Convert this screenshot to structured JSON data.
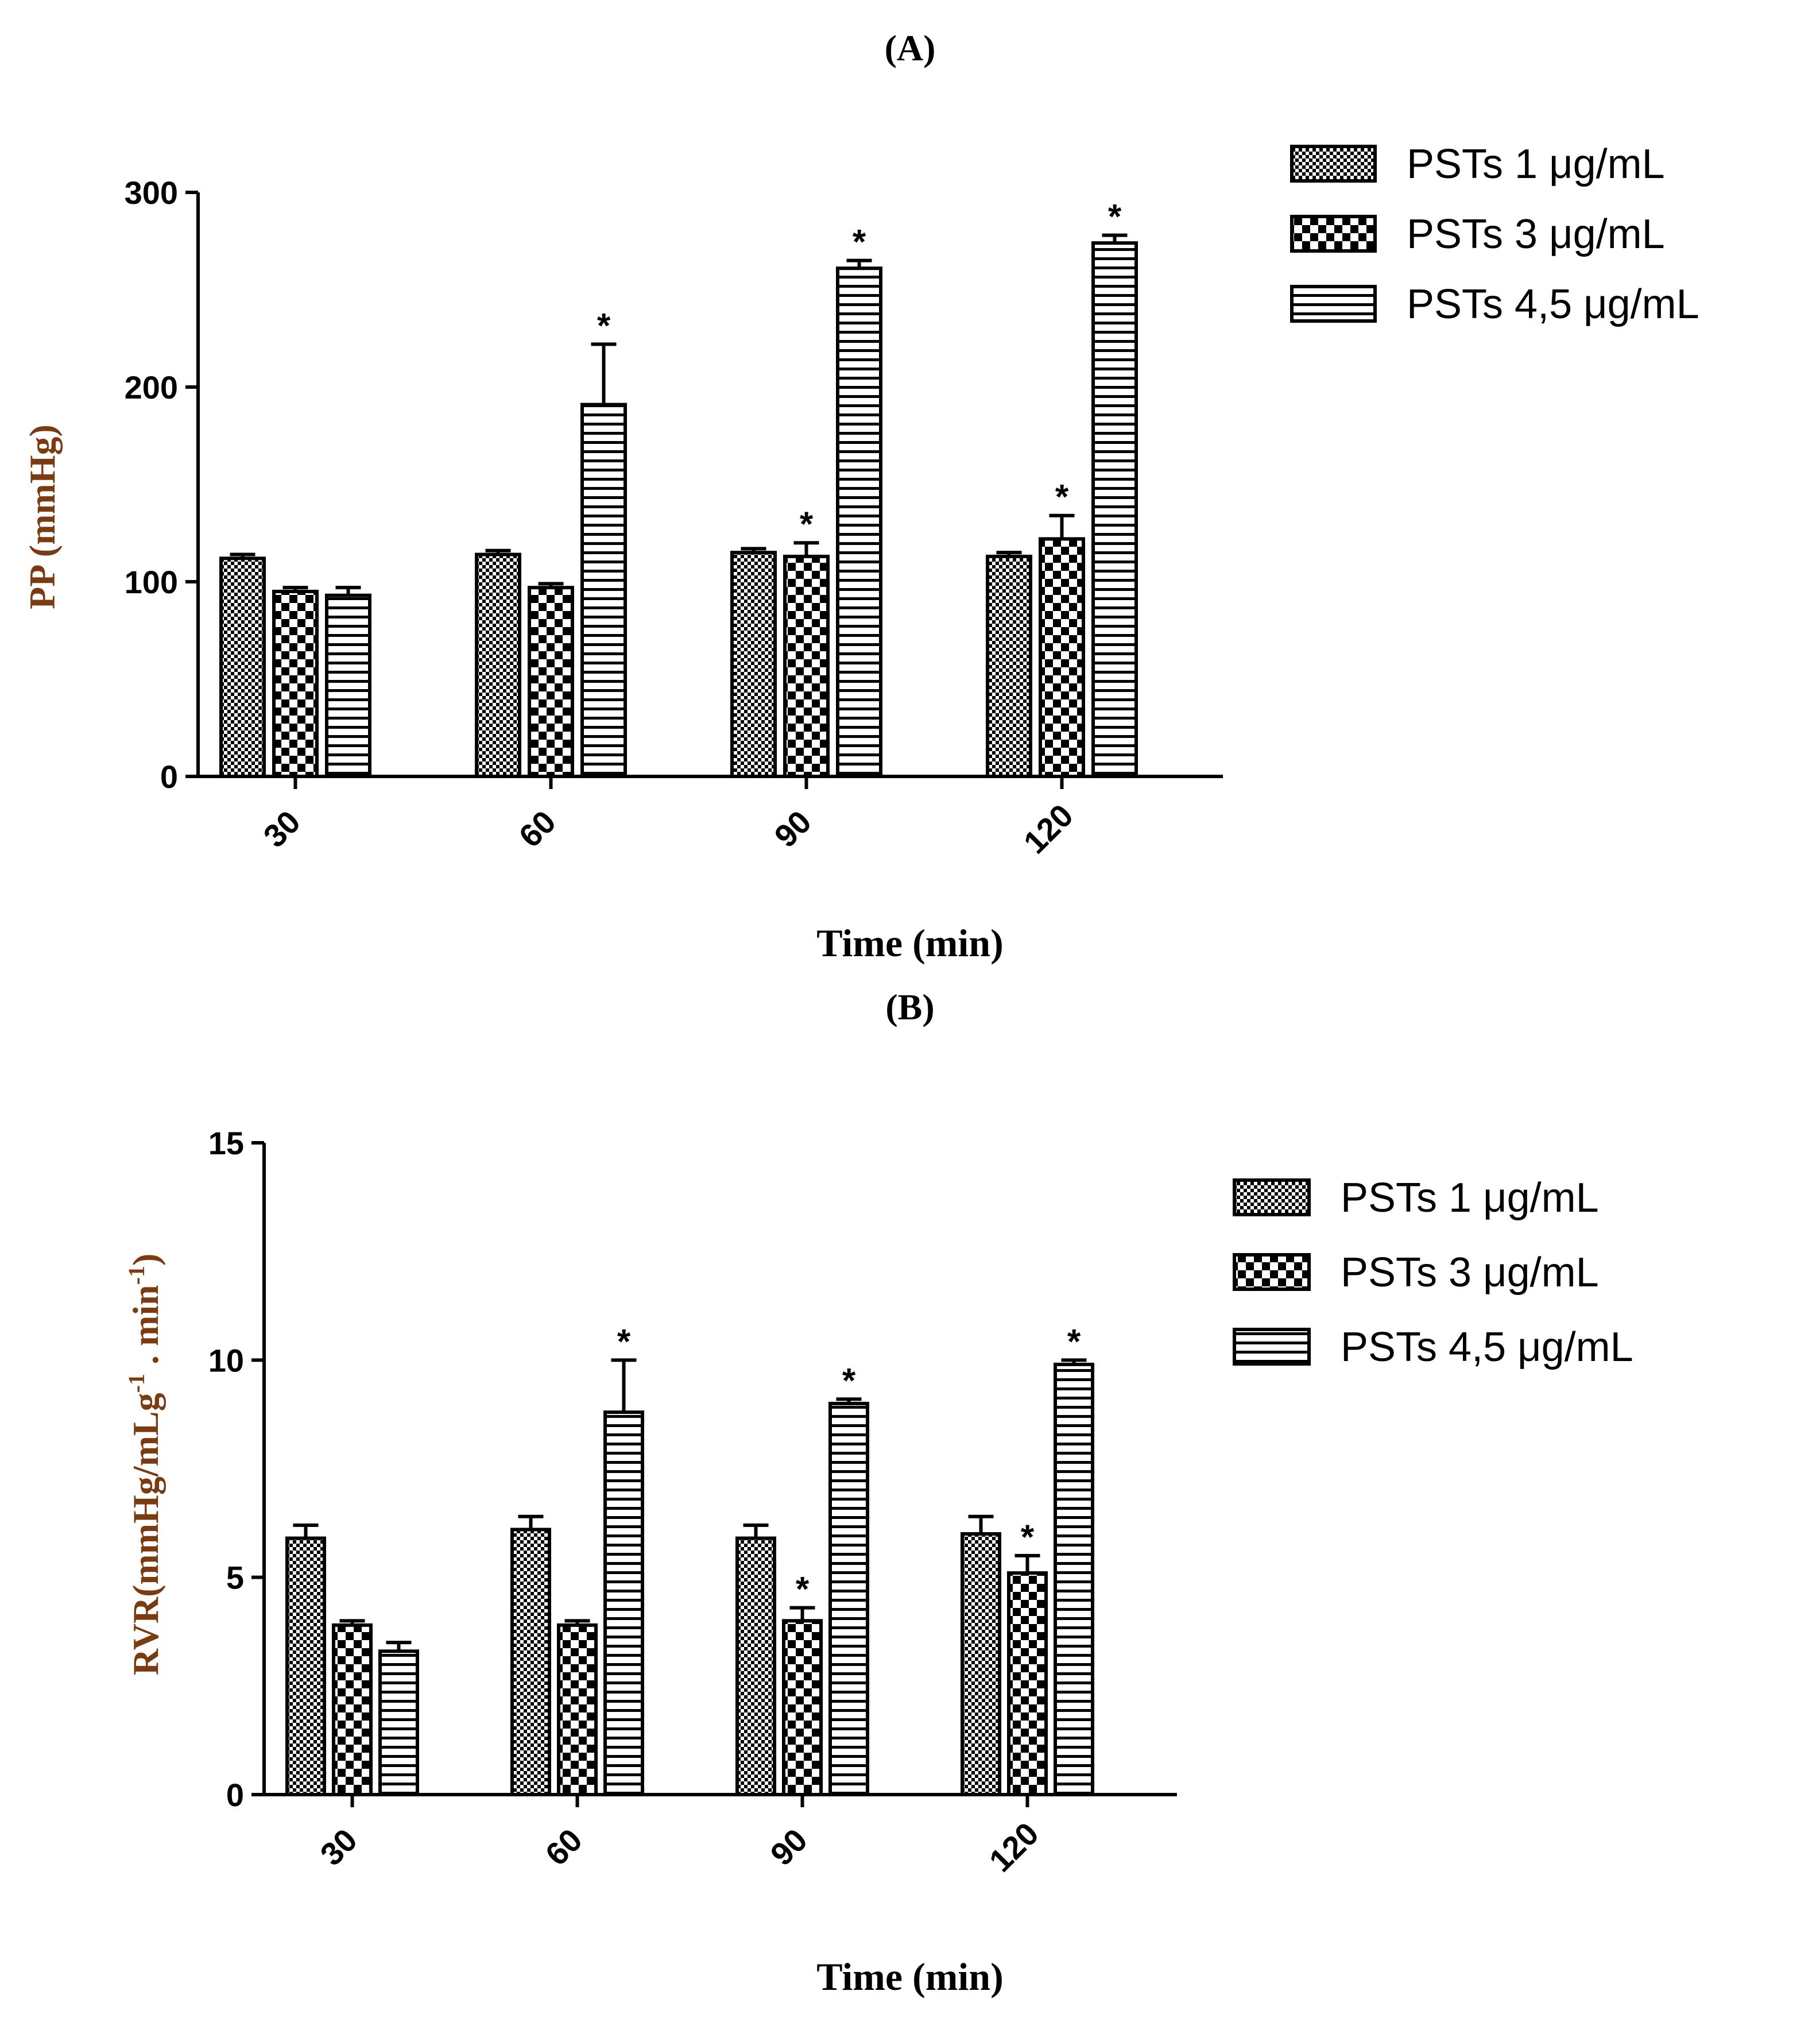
{
  "chart_data": [
    {
      "panel": "(A)",
      "type": "bar",
      "categories": [
        "30",
        "60",
        "90",
        "120"
      ],
      "series": [
        {
          "name": "PSTs 1 μg/mL",
          "pattern": "dense-checker",
          "values": [
            112,
            114,
            115,
            113
          ],
          "errors": [
            2,
            2,
            2,
            2
          ],
          "significant": [
            false,
            false,
            false,
            false
          ]
        },
        {
          "name": "PSTs 3 μg/mL",
          "pattern": "checker",
          "values": [
            95,
            97,
            113,
            122
          ],
          "errors": [
            2,
            2,
            7,
            12
          ],
          "significant": [
            false,
            false,
            true,
            true
          ]
        },
        {
          "name": "PSTs 4,5 μg/mL",
          "pattern": "horizontal-stripes",
          "values": [
            93,
            191,
            261,
            274
          ],
          "errors": [
            4,
            31,
            4,
            4
          ],
          "significant": [
            false,
            true,
            true,
            true
          ]
        }
      ],
      "significance_marker": "*",
      "ylabel": "PP (mmHg)",
      "xlabel": "Time (min)",
      "ylim": [
        0,
        300
      ],
      "yticks": [
        "0",
        "100",
        "200",
        "300"
      ],
      "legend": "top-right"
    },
    {
      "panel": "(B)",
      "type": "bar",
      "categories": [
        "30",
        "60",
        "90",
        "120"
      ],
      "series": [
        {
          "name": "PSTs 1 μg/mL",
          "pattern": "dense-checker",
          "values": [
            5.9,
            6.1,
            5.9,
            6.0
          ],
          "errors": [
            0.3,
            0.3,
            0.3,
            0.4
          ],
          "significant": [
            false,
            false,
            false,
            false
          ]
        },
        {
          "name": "PSTs 3 μg/mL",
          "pattern": "checker",
          "values": [
            3.9,
            3.9,
            4.0,
            5.1
          ],
          "errors": [
            0.1,
            0.1,
            0.3,
            0.4
          ],
          "significant": [
            false,
            false,
            true,
            true
          ]
        },
        {
          "name": "PSTs 4,5 μg/mL",
          "pattern": "horizontal-stripes",
          "values": [
            3.3,
            8.8,
            9.0,
            9.9
          ],
          "errors": [
            0.2,
            1.2,
            0.1,
            0.1
          ],
          "significant": [
            false,
            true,
            true,
            true
          ]
        }
      ],
      "significance_marker": "*",
      "ylabel": "RVR(mmHg/mLg-1 . min-1)",
      "ylabel_parts": {
        "prefix": "RVR(mmHg/mLg",
        "sup1": "-1",
        "middle": " . min",
        "sup2": "-1",
        "suffix": ")"
      },
      "xlabel": "Time (min)",
      "ylim": [
        0,
        15
      ],
      "yticks": [
        "0",
        "5",
        "10",
        "15"
      ],
      "legend": "top-right"
    }
  ],
  "colors": {
    "axis": "#000000",
    "ylabel_b": "#7a3b10",
    "ylabel_a": "#7a3b10"
  }
}
